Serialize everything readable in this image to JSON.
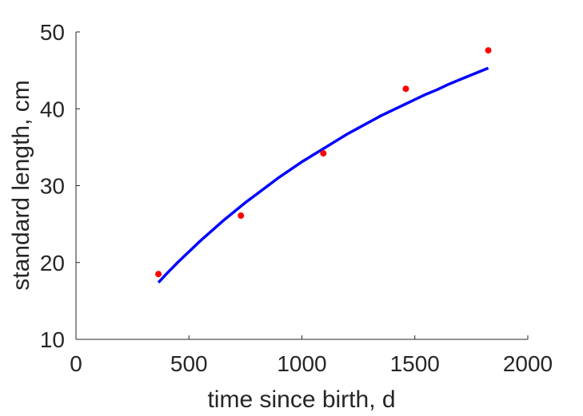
{
  "chart_data": {
    "type": "scatter",
    "title": "",
    "xlabel": "time since birth, d",
    "ylabel": "standard length, cm",
    "xlim": [
      0,
      2000
    ],
    "ylim": [
      10,
      50
    ],
    "xticks": [
      0,
      500,
      1000,
      1500,
      2000
    ],
    "yticks": [
      10,
      20,
      30,
      40,
      50
    ],
    "grid": false,
    "legend": "none",
    "series": [
      {
        "kind": "scatter",
        "color": "#ff0000",
        "x": [
          365,
          730,
          1095,
          1460,
          1825
        ],
        "y": [
          18.5,
          26.1,
          34.2,
          42.6,
          47.6
        ]
      },
      {
        "kind": "line",
        "color": "#0000ff",
        "x": [
          365,
          400,
          450,
          500,
          550,
          600,
          650,
          700,
          750,
          800,
          850,
          900,
          950,
          1000,
          1050,
          1100,
          1150,
          1200,
          1250,
          1300,
          1350,
          1400,
          1450,
          1500,
          1550,
          1600,
          1650,
          1700,
          1750,
          1800,
          1825
        ],
        "y": [
          17.4,
          18.5,
          20.0,
          21.4,
          22.8,
          24.1,
          25.4,
          26.6,
          27.8,
          28.9,
          30.0,
          31.1,
          32.1,
          33.1,
          34.0,
          34.9,
          35.8,
          36.7,
          37.5,
          38.3,
          39.1,
          39.8,
          40.5,
          41.2,
          41.9,
          42.5,
          43.2,
          43.8,
          44.4,
          45.0,
          45.3
        ]
      }
    ]
  }
}
